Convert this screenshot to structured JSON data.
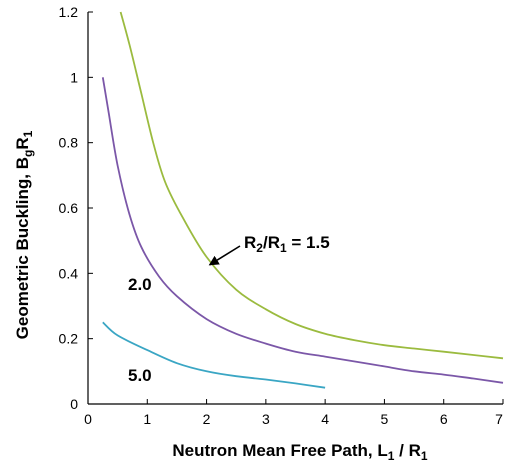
{
  "chart_data": {
    "type": "line",
    "xlabel": {
      "main": "Neutron Mean Free Path, L",
      "sub1": "1",
      "mid": " / R",
      "sub2": "1"
    },
    "ylabel": {
      "main": "Geometric Buckling,  B",
      "sub1": "g",
      "mid": "R",
      "sub2": "1"
    },
    "xlim": [
      0,
      7
    ],
    "ylim": [
      0,
      1.2
    ],
    "x_ticks": [
      "0",
      "1",
      "2",
      "3",
      "4",
      "5",
      "6",
      "7"
    ],
    "y_ticks": [
      "0",
      "0.2",
      "0.4",
      "0.6",
      "0.8",
      "1",
      "1.2"
    ],
    "grid": false,
    "series": [
      {
        "label": "1.5",
        "color": "#9bbb3f",
        "points": [
          [
            0.55,
            1.2
          ],
          [
            0.7,
            1.1
          ],
          [
            0.9,
            0.95
          ],
          [
            1.1,
            0.8
          ],
          [
            1.3,
            0.68
          ],
          [
            1.6,
            0.57
          ],
          [
            2.0,
            0.45
          ],
          [
            2.5,
            0.35
          ],
          [
            3.0,
            0.29
          ],
          [
            3.5,
            0.245
          ],
          [
            4.0,
            0.215
          ],
          [
            4.5,
            0.195
          ],
          [
            5.0,
            0.18
          ],
          [
            5.5,
            0.17
          ],
          [
            6.0,
            0.16
          ],
          [
            6.5,
            0.15
          ],
          [
            7.0,
            0.14
          ]
        ]
      },
      {
        "label": "2.0",
        "color": "#7b57a8",
        "points": [
          [
            0.25,
            1.0
          ],
          [
            0.35,
            0.89
          ],
          [
            0.5,
            0.73
          ],
          [
            0.7,
            0.58
          ],
          [
            0.9,
            0.48
          ],
          [
            1.2,
            0.39
          ],
          [
            1.5,
            0.33
          ],
          [
            2.0,
            0.26
          ],
          [
            2.5,
            0.215
          ],
          [
            3.0,
            0.185
          ],
          [
            3.5,
            0.16
          ],
          [
            4.0,
            0.145
          ],
          [
            4.5,
            0.13
          ],
          [
            5.0,
            0.115
          ],
          [
            5.5,
            0.1
          ],
          [
            6.0,
            0.09
          ],
          [
            6.5,
            0.078
          ],
          [
            7.0,
            0.065
          ]
        ]
      },
      {
        "label": "5.0",
        "color": "#3aa6c4",
        "points": [
          [
            0.25,
            0.25
          ],
          [
            0.5,
            0.21
          ],
          [
            1.0,
            0.165
          ],
          [
            1.5,
            0.125
          ],
          [
            2.0,
            0.1
          ],
          [
            2.5,
            0.085
          ],
          [
            3.0,
            0.075
          ],
          [
            3.5,
            0.063
          ],
          [
            4.0,
            0.05
          ]
        ]
      }
    ],
    "annotations": [
      {
        "prefix": "R",
        "sub1": "2",
        "mid": "/R",
        "sub2": "1",
        "suffix": " = 1.5",
        "arrow_to": [
          2.0,
          0.42
        ]
      },
      {
        "text": "2.0"
      },
      {
        "text": "5.0"
      }
    ]
  }
}
